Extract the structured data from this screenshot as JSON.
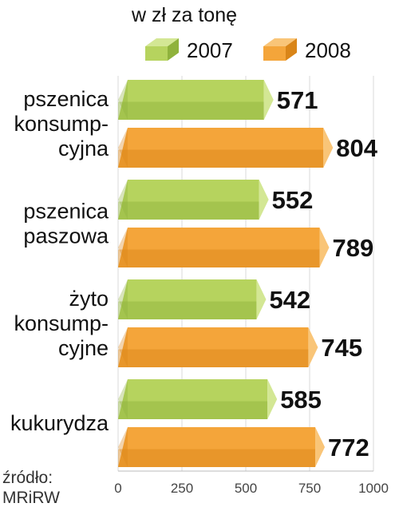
{
  "chart_data": {
    "type": "bar",
    "orientation": "horizontal",
    "unit_label": "w zł za tonę",
    "categories": [
      [
        "pszenica",
        "konsump-",
        "cyjna"
      ],
      [
        "pszenica",
        "paszowa"
      ],
      [
        "żyto",
        "konsump-",
        "cyjne"
      ],
      [
        "kukurydza"
      ]
    ],
    "series": [
      {
        "name": "2007",
        "values": [
          571,
          552,
          542,
          585
        ],
        "color": "#b6d35e"
      },
      {
        "name": "2008",
        "values": [
          804,
          789,
          745,
          772
        ],
        "color": "#f4a53a"
      }
    ],
    "xlim": [
      0,
      1000
    ],
    "xticks": [
      0,
      250,
      500,
      750,
      1000
    ],
    "grid": true,
    "legend_position": "top",
    "source": [
      "źródło:",
      "MRiRW"
    ]
  }
}
